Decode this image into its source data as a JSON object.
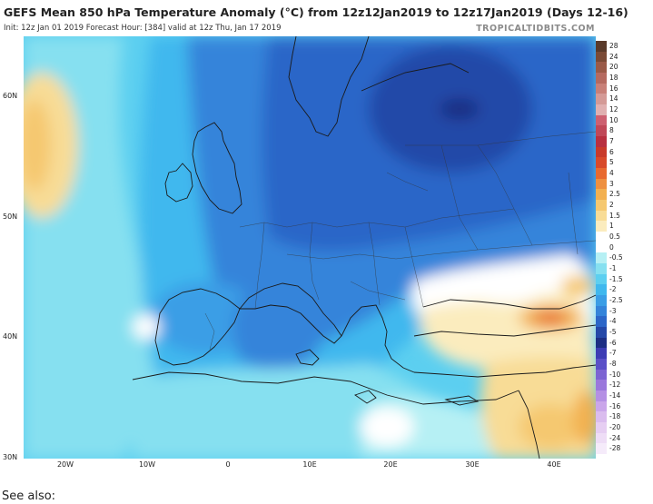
{
  "header": {
    "title": "GEFS Mean 850 hPa Temperature Anomaly (°C) from 12z12Jan2019 to 12z17Jan2019 (Days 12-16)",
    "subtitle": "Init: 12z Jan 01 2019   Forecast Hour: [384]   valid at 12z Thu, Jan 17 2019",
    "brand": "TROPICALTIDBITS.COM"
  },
  "axes": {
    "lat_labels": [
      "60N",
      "50N",
      "40N",
      "30N"
    ],
    "lon_labels": [
      "20W",
      "10W",
      "0",
      "10E",
      "20E",
      "30E",
      "40E"
    ]
  },
  "legend": {
    "labels": [
      "28",
      "24",
      "20",
      "18",
      "16",
      "14",
      "12",
      "10",
      "8",
      "7",
      "6",
      "5",
      "4",
      "3",
      "2.5",
      "2",
      "1.5",
      "1",
      "0.5",
      "0",
      "-0.5",
      "-1",
      "-1.5",
      "-2",
      "-2.5",
      "-3",
      "-4",
      "-5",
      "-6",
      "-7",
      "-8",
      "-10",
      "-12",
      "-14",
      "-16",
      "-18",
      "-20",
      "-24",
      "-28"
    ],
    "colors": [
      "#5a3a2a",
      "#7a4a36",
      "#9a5a48",
      "#b56a60",
      "#c88078",
      "#d49a96",
      "#e0b0b0",
      "#cd6070",
      "#c04858",
      "#b83040",
      "#c83a2a",
      "#d84a2a",
      "#e86a30",
      "#ee9040",
      "#f2b050",
      "#f5c870",
      "#f8dc96",
      "#fbecbe",
      "#ffffff",
      "#ffffff",
      "#b6f0f4",
      "#86e0f0",
      "#5ccff0",
      "#3fb8ee",
      "#3a9ee6",
      "#3484da",
      "#2c66c8",
      "#2448a8",
      "#1c2e84",
      "#3c3cb4",
      "#5a50c8",
      "#7c64d2",
      "#9a78dc",
      "#b490e4",
      "#caa6ea",
      "#dabcee",
      "#e6cef2",
      "#eeddf6",
      "#f5ebfa"
    ]
  },
  "footer": {
    "text": "See also:"
  }
}
